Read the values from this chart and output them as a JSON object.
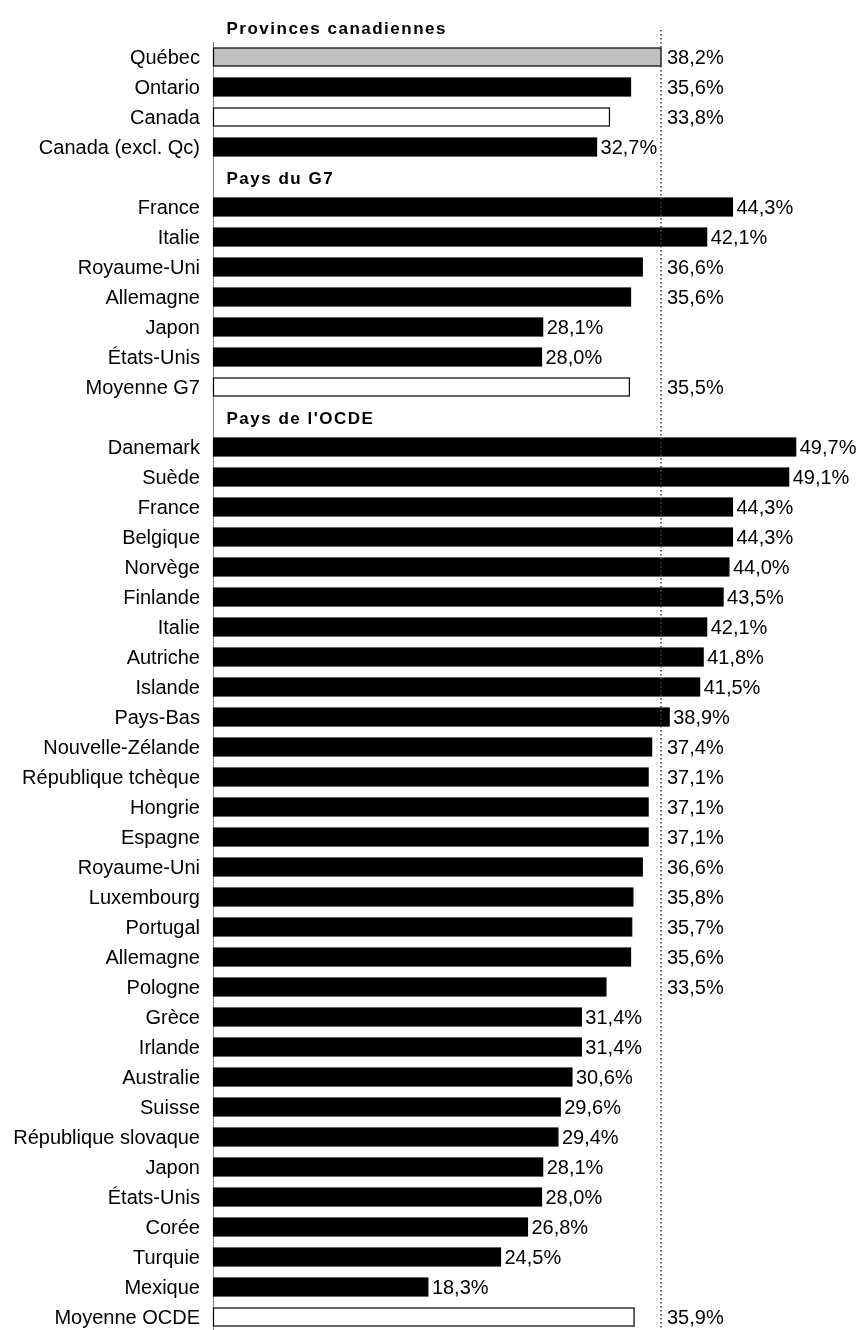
{
  "chart_data": {
    "type": "bar",
    "orientation": "horizontal",
    "categories": [
      null,
      "Québec",
      "Ontario",
      "Canada",
      "Canada (excl. Qc)",
      null,
      "France",
      "Italie",
      "Royaume-Uni",
      "Allemagne",
      "Japon",
      "États-Unis",
      "Moyenne G7",
      null,
      "Danemark",
      "Suède",
      "France",
      "Belgique",
      "Norvège",
      "Finlande",
      "Italie",
      "Autriche",
      "Islande",
      "Pays-Bas",
      "Nouvelle-Zélande",
      "République tchèque",
      "Hongrie",
      "Espagne",
      "Royaume-Uni",
      "Luxembourg",
      "Portugal",
      "Allemagne",
      "Pologne",
      "Grèce",
      "Irlande",
      "Australie",
      "Suisse",
      "République slovaque",
      "Japon",
      "États-Unis",
      "Corée",
      "Turquie",
      "Mexique",
      "Moyenne OCDE"
    ],
    "values": [
      null,
      38.2,
      35.6,
      33.8,
      32.7,
      null,
      44.3,
      42.1,
      36.6,
      35.6,
      28.1,
      28.0,
      35.5,
      null,
      49.7,
      49.1,
      44.3,
      44.3,
      44.0,
      43.5,
      42.1,
      41.8,
      41.5,
      38.9,
      37.4,
      37.1,
      37.1,
      37.1,
      36.6,
      35.8,
      35.7,
      35.6,
      33.5,
      31.4,
      31.4,
      30.6,
      29.6,
      29.4,
      28.1,
      28.0,
      26.8,
      24.5,
      18.3,
      35.9
    ],
    "value_labels": [
      null,
      "38,2%",
      "35,6%",
      "33,8%",
      "32,7%",
      null,
      "44,3%",
      "42,1%",
      "36,6%",
      "35,6%",
      "28,1%",
      "28,0%",
      "35,5%",
      null,
      "49,7%",
      "49,1%",
      "44,3%",
      "44,3%",
      "44,0%",
      "43,5%",
      "42,1%",
      "41,8%",
      "41,5%",
      "38,9%",
      "37,4%",
      "37,1%",
      "37,1%",
      "37,1%",
      "36,6%",
      "35,8%",
      "35,7%",
      "35,6%",
      "33,5%",
      "31,4%",
      "31,4%",
      "30,6%",
      "29,6%",
      "29,4%",
      "28,1%",
      "28,0%",
      "26,8%",
      "24,5%",
      "18,3%",
      "35,9%"
    ],
    "colors": [
      null,
      "#c0c0c0",
      "#000000",
      "#ffffff",
      "#000000",
      null,
      "#000000",
      "#000000",
      "#000000",
      "#000000",
      "#000000",
      "#000000",
      "#ffffff",
      null,
      "#000000",
      "#000000",
      "#000000",
      "#000000",
      "#000000",
      "#000000",
      "#000000",
      "#000000",
      "#000000",
      "#000000",
      "#000000",
      "#000000",
      "#000000",
      "#000000",
      "#000000",
      "#000000",
      "#000000",
      "#000000",
      "#000000",
      "#000000",
      "#000000",
      "#000000",
      "#000000",
      "#000000",
      "#000000",
      "#000000",
      "#000000",
      "#000000",
      "#000000",
      "#ffffff"
    ],
    "xlim": [
      0,
      55
    ],
    "tick_labels": "y",
    "ref_lines": [
      {
        "axis": "x",
        "value": 38.2,
        "color": "#404040",
        "line_style": "dotted"
      }
    ],
    "annotations": [
      "Provinces canadiennes",
      "Pays du G7",
      "Pays de l'OCDE"
    ]
  }
}
